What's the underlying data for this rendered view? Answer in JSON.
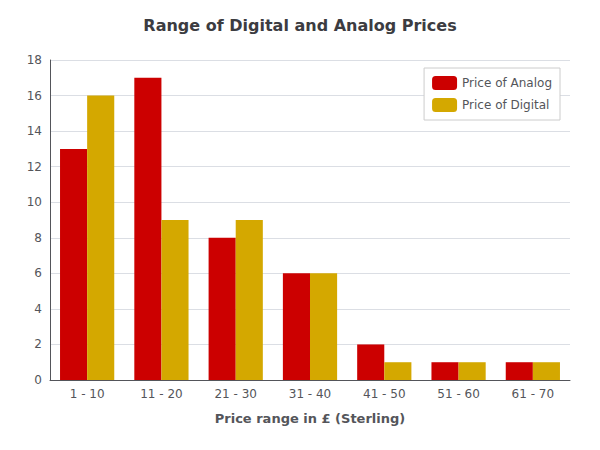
{
  "chart_data": {
    "type": "bar",
    "title": "Range of Digital and Analog Prices",
    "xlabel": "Price range in £ (Sterling)",
    "categories": [
      "1 - 10",
      "11 - 20",
      "21 - 30",
      "31 - 40",
      "41 - 50",
      "51 - 60",
      "61 - 70"
    ],
    "series": [
      {
        "name": "Price of Analog",
        "color": "#CC0000",
        "values": [
          13,
          17,
          8,
          6,
          2,
          1,
          1
        ]
      },
      {
        "name": "Price of Digital",
        "color": "#D4A800",
        "values": [
          16,
          9,
          9,
          6,
          1,
          1,
          1
        ]
      }
    ],
    "ylim": [
      0,
      18
    ],
    "yticks": [
      0,
      2,
      4,
      6,
      8,
      10,
      12,
      14,
      16,
      18
    ],
    "grid": true,
    "legend": "upper right"
  }
}
